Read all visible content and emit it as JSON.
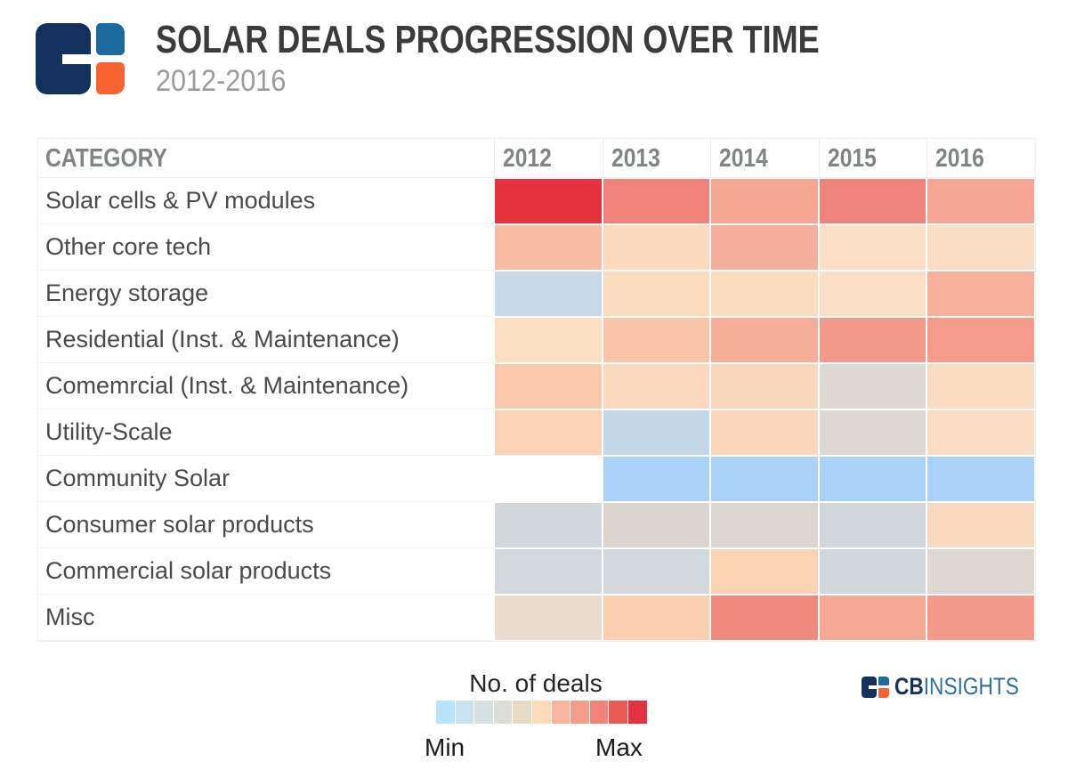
{
  "header": {
    "title": "SOLAR DEALS PROGRESSION OVER TIME",
    "subtitle": "2012-2016"
  },
  "table": {
    "category_header": "CATEGORY",
    "years": [
      "2012",
      "2013",
      "2014",
      "2015",
      "2016"
    ],
    "rows": [
      {
        "label": "Solar cells & PV modules",
        "cell_colors": [
          "#E6333F",
          "#F0827B",
          "#F5A695",
          "#EF827C",
          "#F5A695"
        ]
      },
      {
        "label": "Other core tech",
        "cell_colors": [
          "#F8BBA3",
          "#FBD9BE",
          "#F6AE9C",
          "#FBDEC4",
          "#FBDDC3"
        ]
      },
      {
        "label": "Energy storage",
        "cell_colors": [
          "#C7D9E9",
          "#FBDCBE",
          "#FBDCBF",
          "#FBDEC4",
          "#F7B09C"
        ]
      },
      {
        "label": "Residential (Inst. & Maintenance)",
        "cell_colors": [
          "#FCDEC2",
          "#F9C4A8",
          "#F6AE99",
          "#F49A8B",
          "#F49B8B"
        ]
      },
      {
        "label": "Comemrcial (Inst. & Maintenance)",
        "cell_colors": [
          "#FAC8AC",
          "#FCD9BE",
          "#FBD7BC",
          "#DED9D3",
          "#FCDCC1"
        ]
      },
      {
        "label": "Utility-Scale",
        "cell_colors": [
          "#FBD2B6",
          "#C3D7E8",
          "#FBD6BB",
          "#DDD8D3",
          "#FCDCC2"
        ]
      },
      {
        "label": "Community Solar",
        "cell_colors": [
          "#FFFFFF",
          "#AAD2F8",
          "#AAD2F8",
          "#AAD2F8",
          "#AAD2F8"
        ]
      },
      {
        "label": "Consumer solar products",
        "cell_colors": [
          "#D2D7DC",
          "#DBD5D0",
          "#DDD6D0",
          "#D1D6DB",
          "#FBD9BE"
        ]
      },
      {
        "label": "Commercial solar products",
        "cell_colors": [
          "#D3D8DD",
          "#D3D8DD",
          "#FBD2B4",
          "#D2D7DC",
          "#DFD8D2"
        ]
      },
      {
        "label": "Misc",
        "cell_colors": [
          "#E9DCCC",
          "#FBD0B2",
          "#F08A7E",
          "#F5A893",
          "#F49A8A"
        ]
      }
    ]
  },
  "legend": {
    "title": "No. of deals",
    "min_label": "Min",
    "max_label": "Max",
    "swatches": [
      "#B9E4FB",
      "#CAE2EE",
      "#D5E0E0",
      "#DBDDD6",
      "#E6DCC5",
      "#FBDBB9",
      "#F8B49E",
      "#F59C8D",
      "#F1837A",
      "#E95A57",
      "#E33340"
    ]
  },
  "brand": {
    "cb": "CB",
    "insights": "INSIGHTS"
  },
  "colors": {
    "title_text": "#3B3B3B",
    "subtitle_text": "#9B9B9B",
    "header_text": "#7F8487",
    "category_text": "#4A4A4A",
    "logo_navy": "#14305C",
    "logo_blue": "#1C6A9E",
    "logo_orange": "#F76231",
    "brand_cb": "#16325F",
    "brand_insights": "#2C6FA6"
  },
  "chart_data": {
    "type": "heatmap",
    "title": "SOLAR DEALS PROGRESSION OVER TIME",
    "subtitle": "2012-2016",
    "x": [
      "2012",
      "2013",
      "2014",
      "2015",
      "2016"
    ],
    "y": [
      "Solar cells & PV modules",
      "Other core tech",
      "Energy storage",
      "Residential (Inst. & Maintenance)",
      "Comemrcial (Inst. & Maintenance)",
      "Utility-Scale",
      "Community Solar",
      "Consumer solar products",
      "Commercial solar products",
      "Misc"
    ],
    "colorbar": {
      "label": "No. of deals",
      "min_label": "Min",
      "max_label": "Max",
      "colors": [
        "#B9E4FB",
        "#CAE2EE",
        "#D5E0E0",
        "#DBDDD6",
        "#E6DCC5",
        "#FBDBB9",
        "#F8B49E",
        "#F59C8D",
        "#F1837A",
        "#E95A57",
        "#E33340"
      ]
    },
    "series": [
      {
        "name": "Solar cells & PV modules",
        "intensity_0min_10max": [
          10,
          9,
          8,
          9,
          8
        ],
        "cell_colors": [
          "#E6333F",
          "#F0827B",
          "#F5A695",
          "#EF827C",
          "#F5A695"
        ]
      },
      {
        "name": "Other core tech",
        "intensity_0min_10max": [
          6,
          5,
          7,
          5,
          5
        ],
        "cell_colors": [
          "#F8BBA3",
          "#FBD9BE",
          "#F6AE9C",
          "#FBDEC4",
          "#FBDDC3"
        ]
      },
      {
        "name": "Energy storage",
        "intensity_0min_10max": [
          1,
          5,
          5,
          5,
          7
        ],
        "cell_colors": [
          "#C7D9E9",
          "#FBDCBE",
          "#FBDCBF",
          "#FBDEC4",
          "#F7B09C"
        ]
      },
      {
        "name": "Residential (Inst. & Maintenance)",
        "intensity_0min_10max": [
          5,
          6,
          7,
          8,
          8
        ],
        "cell_colors": [
          "#FCDEC2",
          "#F9C4A8",
          "#F6AE99",
          "#F49A8B",
          "#F49B8B"
        ]
      },
      {
        "name": "Comemrcial (Inst. & Maintenance)",
        "intensity_0min_10max": [
          6,
          5,
          5,
          3,
          5
        ],
        "cell_colors": [
          "#FAC8AC",
          "#FCD9BE",
          "#FBD7BC",
          "#DED9D3",
          "#FCDCC1"
        ]
      },
      {
        "name": "Utility-Scale",
        "intensity_0min_10max": [
          5,
          1,
          5,
          3,
          5
        ],
        "cell_colors": [
          "#FBD2B6",
          "#C3D7E8",
          "#FBD6BB",
          "#DDD8D3",
          "#FCDCC2"
        ]
      },
      {
        "name": "Community Solar",
        "intensity_0min_10max": [
          null,
          0,
          0,
          0,
          0
        ],
        "cell_colors": [
          "#FFFFFF",
          "#AAD2F8",
          "#AAD2F8",
          "#AAD2F8",
          "#AAD2F8"
        ]
      },
      {
        "name": "Consumer solar products",
        "intensity_0min_10max": [
          2,
          3,
          3,
          2,
          5
        ],
        "cell_colors": [
          "#D2D7DC",
          "#DBD5D0",
          "#DDD6D0",
          "#D1D6DB",
          "#FBD9BE"
        ]
      },
      {
        "name": "Commercial solar products",
        "intensity_0min_10max": [
          2,
          2,
          5,
          2,
          3
        ],
        "cell_colors": [
          "#D3D8DD",
          "#D3D8DD",
          "#FBD2B4",
          "#D2D7DC",
          "#DFD8D2"
        ]
      },
      {
        "name": "Misc",
        "intensity_0min_10max": [
          4,
          5,
          9,
          8,
          8
        ],
        "cell_colors": [
          "#E9DCCC",
          "#FBD0B2",
          "#F08A7E",
          "#F5A893",
          "#F49A8A"
        ]
      }
    ],
    "legend_position": "bottom-center",
    "grid": false
  }
}
